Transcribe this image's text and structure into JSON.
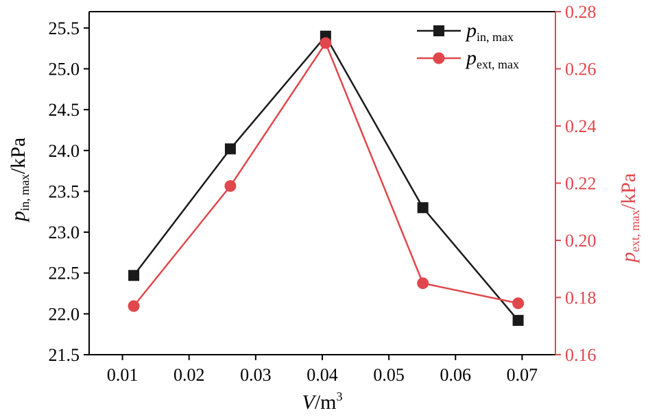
{
  "chart_data": {
    "type": "line",
    "x": [
      0.0117,
      0.0262,
      0.0405,
      0.0551,
      0.0694
    ],
    "xlim": [
      0.005,
      0.075
    ],
    "xticks": [
      "0.01",
      "0.02",
      "0.03",
      "0.04",
      "0.05",
      "0.06",
      "0.07"
    ],
    "xtick_values": [
      0.01,
      0.02,
      0.03,
      0.04,
      0.05,
      0.06,
      0.07
    ],
    "xlabel": {
      "main": "V",
      "unit": "/m",
      "sup": "3"
    },
    "ylim_left": [
      21.5,
      25.7
    ],
    "yticks_left": [
      "21.5",
      "22.0",
      "22.5",
      "23.0",
      "23.5",
      "24.0",
      "24.5",
      "25.0",
      "25.5"
    ],
    "ytick_values_left": [
      21.5,
      22.0,
      22.5,
      23.0,
      23.5,
      24.0,
      24.5,
      25.0,
      25.5
    ],
    "ylabel_left": {
      "main": "p",
      "sub": "in, max",
      "unit": "/kPa"
    },
    "ylim_right": [
      0.16,
      0.28
    ],
    "yticks_right": [
      "0.16",
      "0.18",
      "0.20",
      "0.22",
      "0.24",
      "0.26",
      "0.28"
    ],
    "ytick_values_right": [
      0.16,
      0.18,
      0.2,
      0.22,
      0.24,
      0.26,
      0.28
    ],
    "ylabel_right": {
      "main": "p",
      "sub": "ext, max",
      "unit": "/kPa"
    },
    "grid": false,
    "legend_position": "top-right",
    "series": [
      {
        "name": "p",
        "name_sub": "in, max",
        "axis": "left",
        "marker": "square",
        "color": "#1a1a1a",
        "values": [
          22.47,
          24.02,
          25.4,
          23.3,
          21.92
        ]
      },
      {
        "name": "p",
        "name_sub": "ext, max",
        "axis": "right",
        "marker": "circle",
        "color": "#e0474c",
        "values": [
          0.177,
          0.219,
          0.269,
          0.185,
          0.178
        ]
      }
    ],
    "axis_colors": {
      "left": "#000000",
      "right": "#e0474c"
    }
  }
}
